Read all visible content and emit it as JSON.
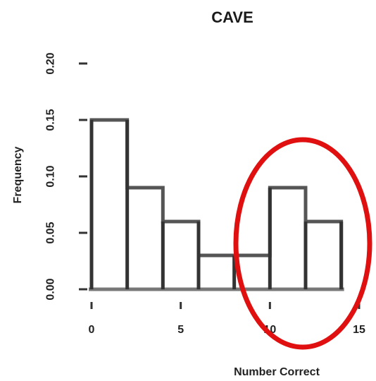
{
  "chart_data": {
    "type": "bar",
    "title": "CAVE",
    "xlabel": "Number Correct",
    "ylabel": "Frequency",
    "xlim": [
      0,
      15
    ],
    "ylim": [
      0,
      0.2
    ],
    "x_ticks": [
      0,
      5,
      10,
      15
    ],
    "y_ticks": [
      0.0,
      0.05,
      0.1,
      0.15,
      0.2
    ],
    "x_tick_labels": [
      "0",
      "5",
      "10",
      "15"
    ],
    "y_tick_labels": [
      "0.00",
      "0.05",
      "0.10",
      "0.15",
      "0.20"
    ],
    "series": [
      {
        "style": "step",
        "x_edges": [
          0,
          2,
          2,
          4,
          4,
          6,
          6,
          10,
          10,
          12,
          12,
          14
        ],
        "values": [
          0.15,
          0.15,
          0.09,
          0.09,
          0.06,
          0.06,
          0.03,
          0.03,
          0.09,
          0.09,
          0.06,
          0.06
        ]
      },
      {
        "style": "spike",
        "x": [
          0,
          2,
          4,
          6,
          8,
          10,
          12,
          14
        ],
        "values": [
          0.15,
          0.15,
          0.06,
          0.06,
          0.03,
          0.09,
          0.06,
          0.06
        ]
      }
    ],
    "annotation": {
      "shape": "ellipse",
      "color": "#e01010"
    },
    "grid": false
  }
}
